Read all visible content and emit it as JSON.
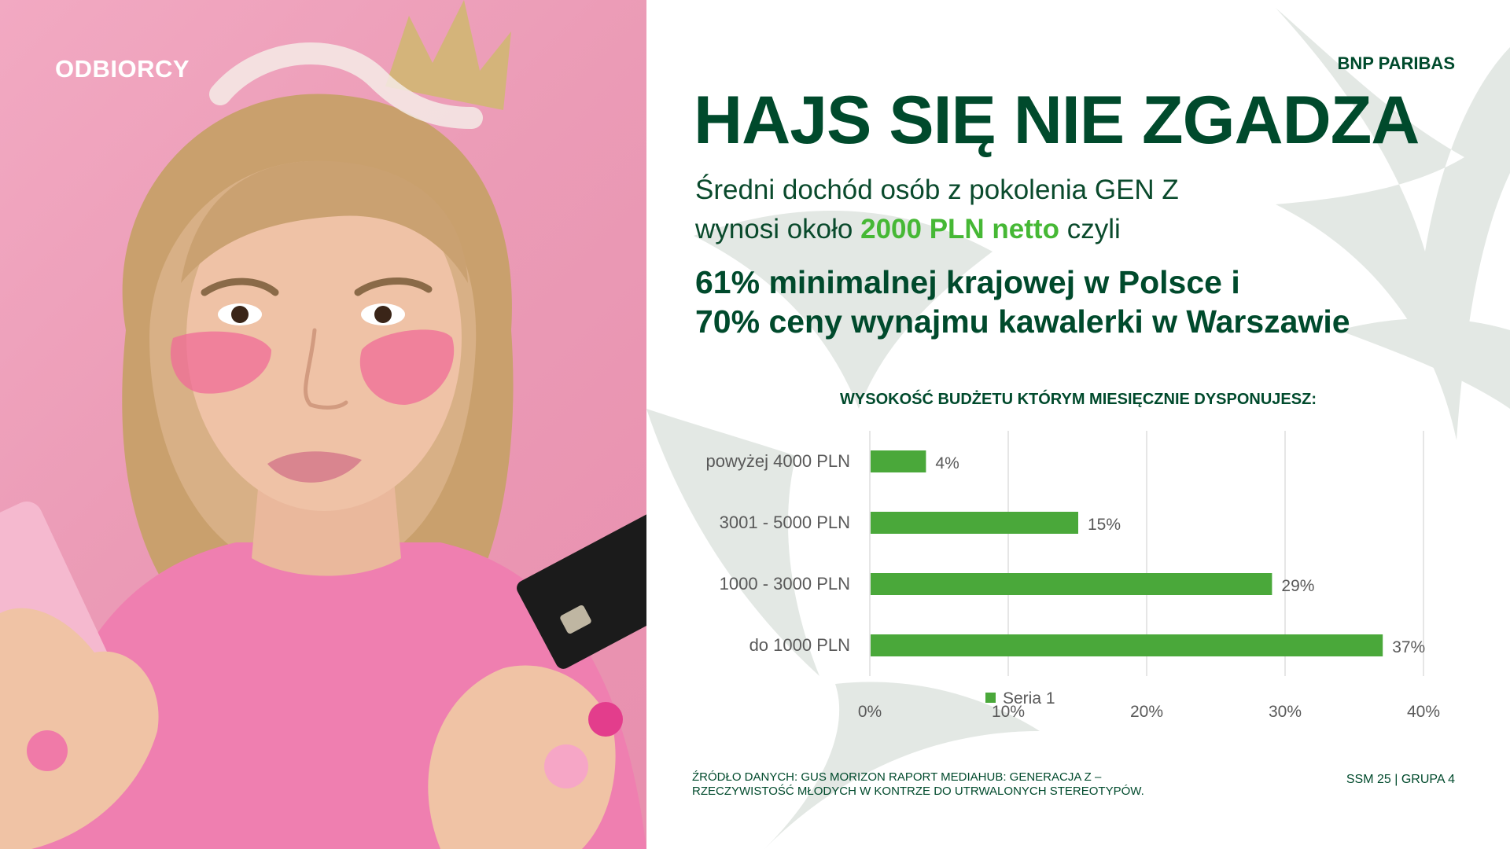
{
  "photo": {
    "section_label": "ODBIORCY"
  },
  "slide": {
    "brand": "BNP PARIBAS",
    "headline": "HAJS SIĘ NIE ZGADZA",
    "subline_1": "Średni dochód osób z pokolenia GEN Z",
    "subline_2_before": "wynosi około ",
    "subline_2_accent": "2000 PLN netto",
    "subline_2_after": " czyli",
    "big_line_1": "61% minimalnej krajowej w Polsce i",
    "big_line_2": "70% ceny wynajmu kawalerki w Warszawie",
    "source": "ŹRÓDŁO DANYCH: GUS MORIZON RAPORT MEDIAHUB: GENERACJA Z – RZECZYWISTOŚĆ MŁODYCH W KONTRZE DO UTRWALONYCH STEREOTYPÓW.",
    "page_tag": "SSM 25 | GRUPA 4"
  },
  "colors": {
    "brand_green": "#004a2c",
    "accent_green": "#46b835",
    "bar_green": "#4aa83a",
    "photo_pink": "#eb9bb6",
    "background_star": "#e3e8e4"
  },
  "chart_data": {
    "type": "bar",
    "orientation": "horizontal",
    "title": "WYSOKOŚĆ BUDŻETU KTÓRYM MIESIĘCZNIE DYSPONUJESZ:",
    "categories": [
      "powyżej 4000 PLN",
      "3001 - 5000 PLN",
      "1000 - 3000 PLN",
      "do 1000 PLN"
    ],
    "series": [
      {
        "name": "Seria 1",
        "values": [
          4,
          15,
          29,
          37
        ],
        "color": "#4aa83a"
      }
    ],
    "data_labels": [
      "4%",
      "15%",
      "29%",
      "37%"
    ],
    "xlim": [
      0,
      40
    ],
    "x_ticks": [
      "0%",
      "10%",
      "20%",
      "30%",
      "40%"
    ],
    "grid": "vertical",
    "legend": "bottom"
  }
}
